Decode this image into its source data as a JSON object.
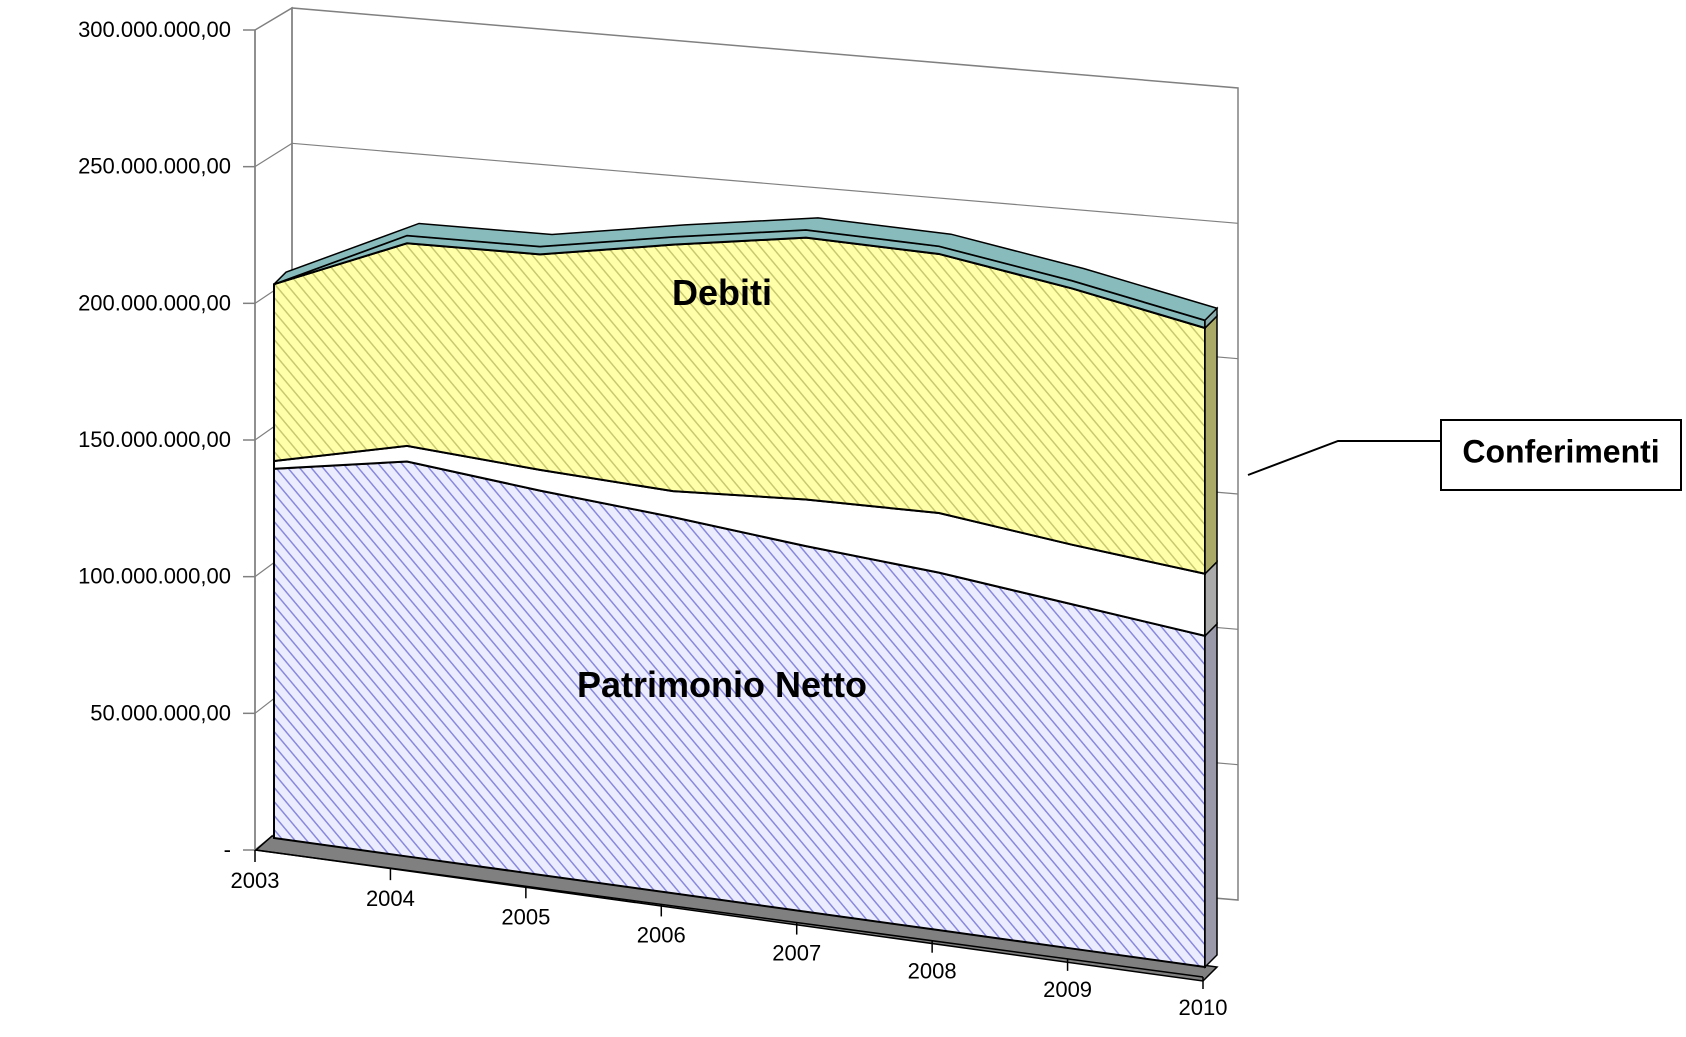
{
  "chart_data": {
    "type": "area",
    "stacked": true,
    "three_d": true,
    "categories": [
      "2003",
      "2004",
      "2005",
      "2006",
      "2007",
      "2008",
      "2009",
      "2010"
    ],
    "series": [
      {
        "name": "Patrimonio Netto",
        "values": [
          142000000,
          152000000,
          148000000,
          145000000,
          141000000,
          138000000,
          133000000,
          128000000
        ]
      },
      {
        "name": "Conferimenti",
        "values": [
          3000000,
          6000000,
          8000000,
          10000000,
          18000000,
          23000000,
          23000000,
          24000000
        ]
      },
      {
        "name": "Debiti",
        "values": [
          68000000,
          78000000,
          83000000,
          95000000,
          101000000,
          100000000,
          99000000,
          95000000
        ]
      },
      {
        "name": "",
        "values": [
          0,
          3000000,
          3000000,
          3000000,
          3000000,
          3000000,
          3000000,
          3000000
        ]
      }
    ],
    "ylim": [
      0,
      300000000
    ],
    "yticks": [
      {
        "value": 0,
        "label": "-"
      },
      {
        "value": 50000000,
        "label": "50.000.000,00"
      },
      {
        "value": 100000000,
        "label": "100.000.000,00"
      },
      {
        "value": 150000000,
        "label": "150.000.000,00"
      },
      {
        "value": 200000000,
        "label": "200.000.000,00"
      },
      {
        "value": 250000000,
        "label": "250.000.000,00"
      },
      {
        "value": 300000000,
        "label": "300.000.000,00"
      }
    ],
    "labels": {
      "debiti": "Debiti",
      "patrimonio": "Patrimonio Netto",
      "conferimenti": "Conferimenti"
    },
    "colors": {
      "patrimonio": "#c8c8f0",
      "patrimonio_hatch": "#8888dd",
      "conferimenti": "#ffffff",
      "debiti": "#ffff99",
      "debiti_hatch": "#b8b860",
      "top_series": "#88bbbb",
      "side": "#999999",
      "floor": "#808080",
      "grid": "#808080"
    },
    "grid": true,
    "legend": "callout-right"
  }
}
